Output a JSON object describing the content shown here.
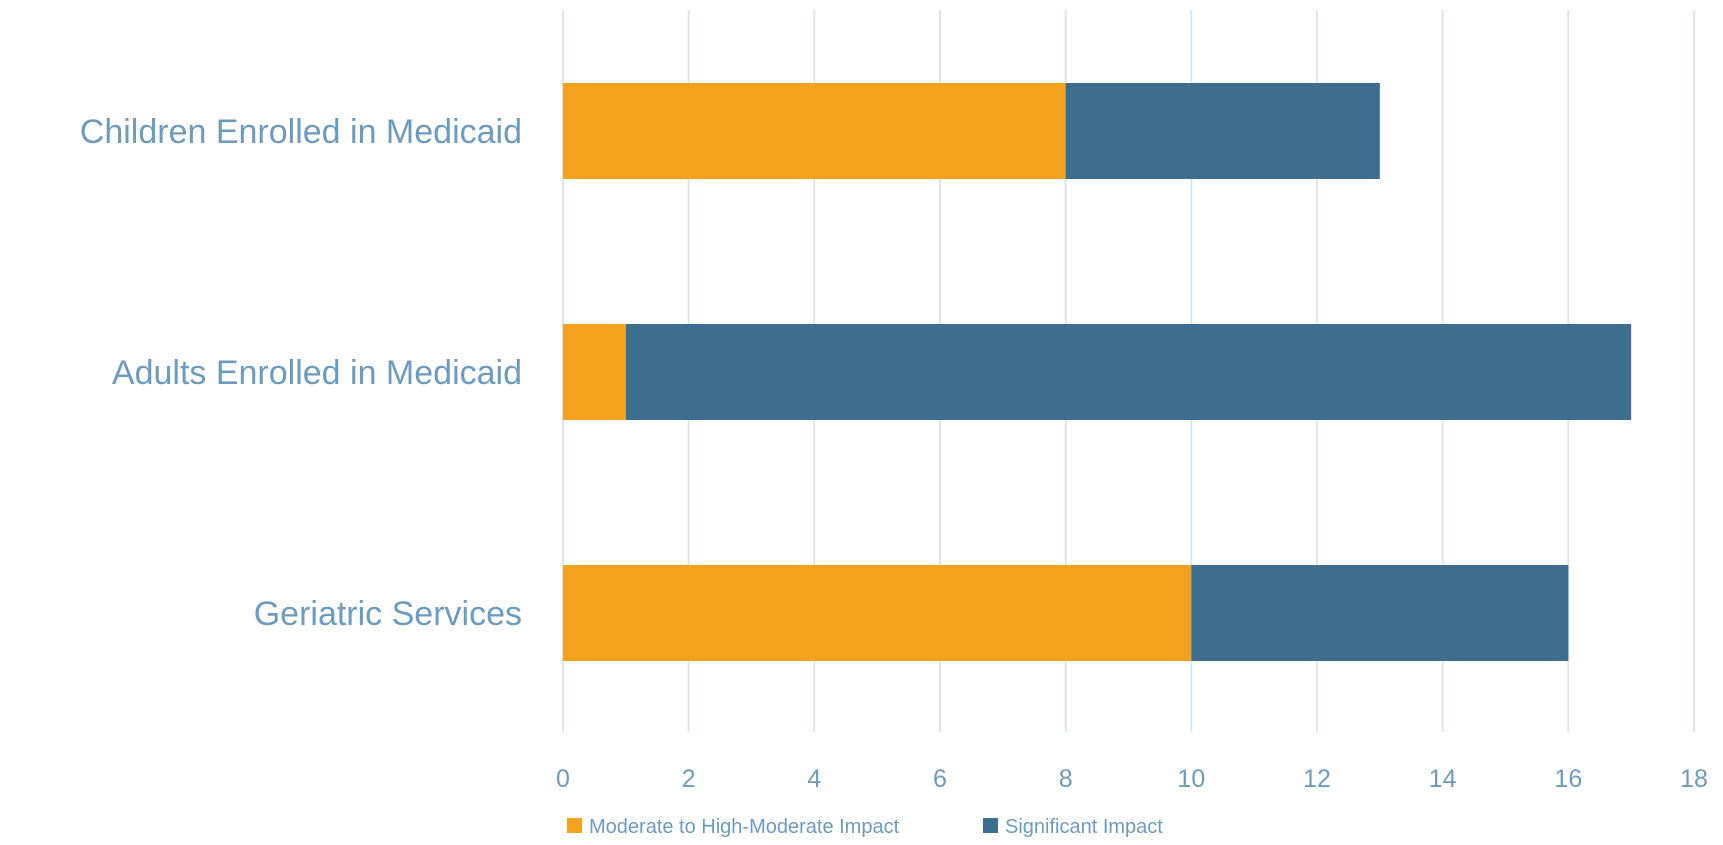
{
  "chart_data": {
    "type": "bar",
    "orientation": "horizontal",
    "stacked": true,
    "categories": [
      "Children Enrolled in Medicaid",
      "Adults Enrolled in Medicaid",
      "Geriatric Services"
    ],
    "series": [
      {
        "name": "Moderate to High-Moderate Impact",
        "values": [
          8,
          1,
          10
        ],
        "color": "#F4A11D"
      },
      {
        "name": "Significant Impact",
        "values": [
          5,
          16,
          6
        ],
        "color": "#3D6E8F"
      }
    ],
    "xlim": [
      0,
      18
    ],
    "x_ticks": [
      "0",
      "2",
      "4",
      "6",
      "8",
      "10",
      "12",
      "14",
      "16",
      "18"
    ],
    "grid": "vertical",
    "legend_position": "bottom",
    "title": "",
    "xlabel": "",
    "ylabel": "",
    "label_color": "#6C9BBF",
    "grid_color": "#D7E7F1"
  }
}
